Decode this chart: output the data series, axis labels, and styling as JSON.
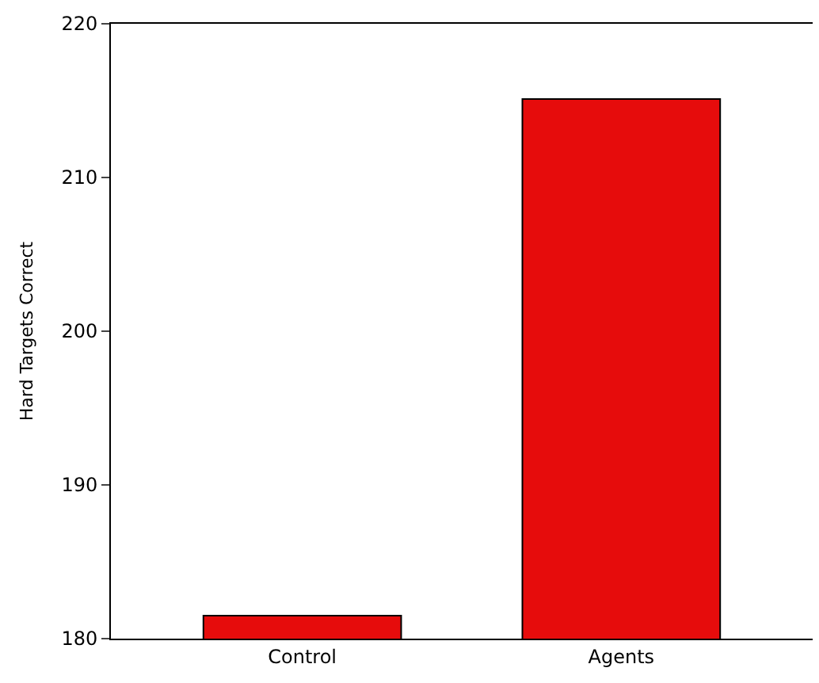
{
  "chart_data": {
    "type": "bar",
    "ylabel": "Hard Targets Correct",
    "categories": [
      "Control",
      "Agents"
    ],
    "values": [
      181.5,
      215.1
    ],
    "color": "#e60c0c",
    "ylim": [
      180,
      220
    ],
    "yticks": [
      180,
      190,
      200,
      210,
      220
    ]
  }
}
